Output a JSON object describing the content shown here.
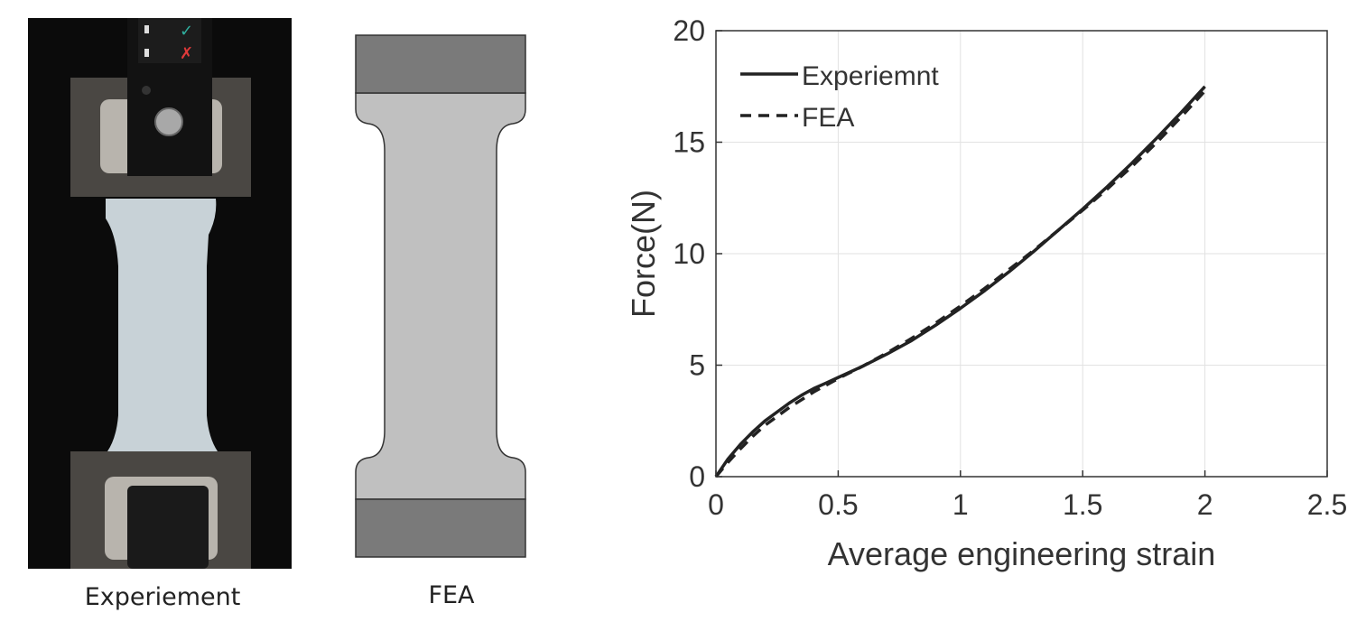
{
  "panels": {
    "experiment_caption": "Experiement",
    "fea_caption": "FEA"
  },
  "colors": {
    "background": "#000000",
    "grip_plate": "#4a4743",
    "specimen": "#d3dde3",
    "fea_grip": "#7a7a7a",
    "fea_gauge": "#c0c0c0",
    "curve": "#222222",
    "grid": "#e2e2e2"
  },
  "chart_data": {
    "type": "line",
    "title": "",
    "xlabel": "Average engineering strain",
    "ylabel": "Force(N)",
    "xlim": [
      0,
      2.5
    ],
    "ylim": [
      0,
      20
    ],
    "xticks": [
      0,
      0.5,
      1,
      1.5,
      2,
      2.5
    ],
    "xtick_labels": [
      "0",
      "0.5",
      "1",
      "1.5",
      "2",
      "2.5"
    ],
    "yticks": [
      0,
      5,
      10,
      15,
      20
    ],
    "ytick_labels": [
      "0",
      "5",
      "10",
      "15",
      "20"
    ],
    "grid": true,
    "legend_position": "top-left",
    "series": [
      {
        "name": "Experiemnt",
        "style": "solid",
        "x": [
          0,
          0.05,
          0.1,
          0.15,
          0.2,
          0.25,
          0.3,
          0.35,
          0.4,
          0.45,
          0.5,
          0.6,
          0.7,
          0.8,
          0.9,
          1.0,
          1.1,
          1.2,
          1.3,
          1.4,
          1.5,
          1.6,
          1.7,
          1.8,
          1.9,
          2.0
        ],
        "y": [
          0,
          0.8,
          1.45,
          2.0,
          2.5,
          2.9,
          3.3,
          3.65,
          3.95,
          4.2,
          4.45,
          4.95,
          5.5,
          6.1,
          6.8,
          7.55,
          8.35,
          9.2,
          10.1,
          11.05,
          12.0,
          13.0,
          14.05,
          15.15,
          16.3,
          17.5
        ]
      },
      {
        "name": "FEA",
        "style": "dashed",
        "x": [
          0,
          0.05,
          0.1,
          0.15,
          0.2,
          0.25,
          0.3,
          0.35,
          0.4,
          0.45,
          0.5,
          0.6,
          0.7,
          0.8,
          0.9,
          1.0,
          1.1,
          1.2,
          1.3,
          1.4,
          1.5,
          1.6,
          1.7,
          1.8,
          1.9,
          2.0
        ],
        "y": [
          0,
          0.65,
          1.25,
          1.8,
          2.3,
          2.7,
          3.1,
          3.45,
          3.8,
          4.1,
          4.4,
          4.95,
          5.55,
          6.2,
          6.9,
          7.65,
          8.45,
          9.3,
          10.15,
          11.05,
          11.95,
          12.9,
          13.9,
          14.95,
          16.1,
          17.3
        ]
      }
    ]
  }
}
